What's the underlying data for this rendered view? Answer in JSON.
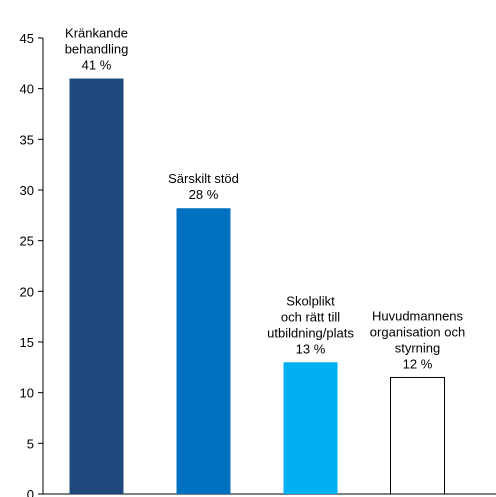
{
  "chart_data": {
    "type": "bar",
    "categories": [
      [
        "Kränkande",
        "behandling"
      ],
      [
        "Särskilt stöd"
      ],
      [
        "Skolplikt",
        "och rätt till",
        "utbildning/plats"
      ],
      [
        "Huvudmannens",
        "organisation och",
        "styrning"
      ]
    ],
    "values": [
      41,
      28.2,
      13,
      11.5
    ],
    "value_labels": [
      "41 %",
      "28 %",
      "13 %",
      "12 %"
    ],
    "colors": [
      "#1f497d",
      "#0070c0",
      "#00b0f0",
      "#ffffff"
    ],
    "ylim": [
      0,
      45
    ],
    "yticks": [
      0,
      5,
      10,
      15,
      20,
      25,
      30,
      35,
      40,
      45
    ],
    "grid": false
  }
}
